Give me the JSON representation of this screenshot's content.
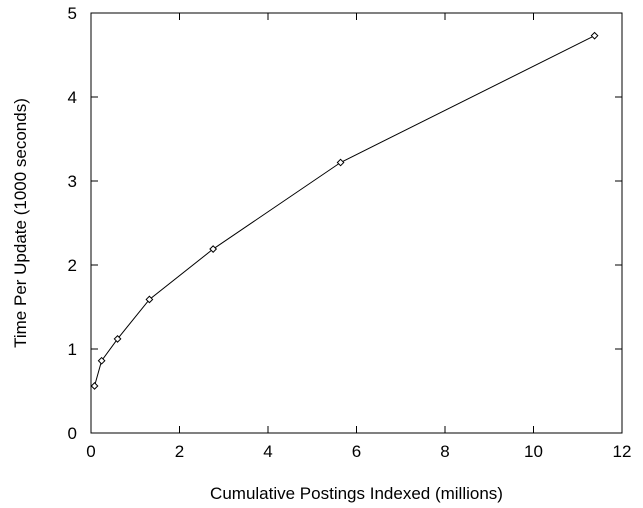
{
  "chart_data": {
    "type": "line",
    "title": "",
    "xlabel": "Cumulative Postings Indexed (millions)",
    "ylabel": "Time Per Update (1000 seconds)",
    "xlim": [
      0,
      12
    ],
    "ylim": [
      0,
      5
    ],
    "xticks": [
      0,
      2,
      4,
      6,
      8,
      10,
      12
    ],
    "yticks": [
      0,
      1,
      2,
      3,
      4,
      5
    ],
    "grid": false,
    "legend": "none",
    "series": [
      {
        "color": "#000000",
        "marker": "diamond",
        "x": [
          0.08,
          0.24,
          0.6,
          1.32,
          2.76,
          5.64,
          11.38
        ],
        "y": [
          0.56,
          0.86,
          1.12,
          1.59,
          2.19,
          3.22,
          4.73
        ]
      }
    ]
  }
}
